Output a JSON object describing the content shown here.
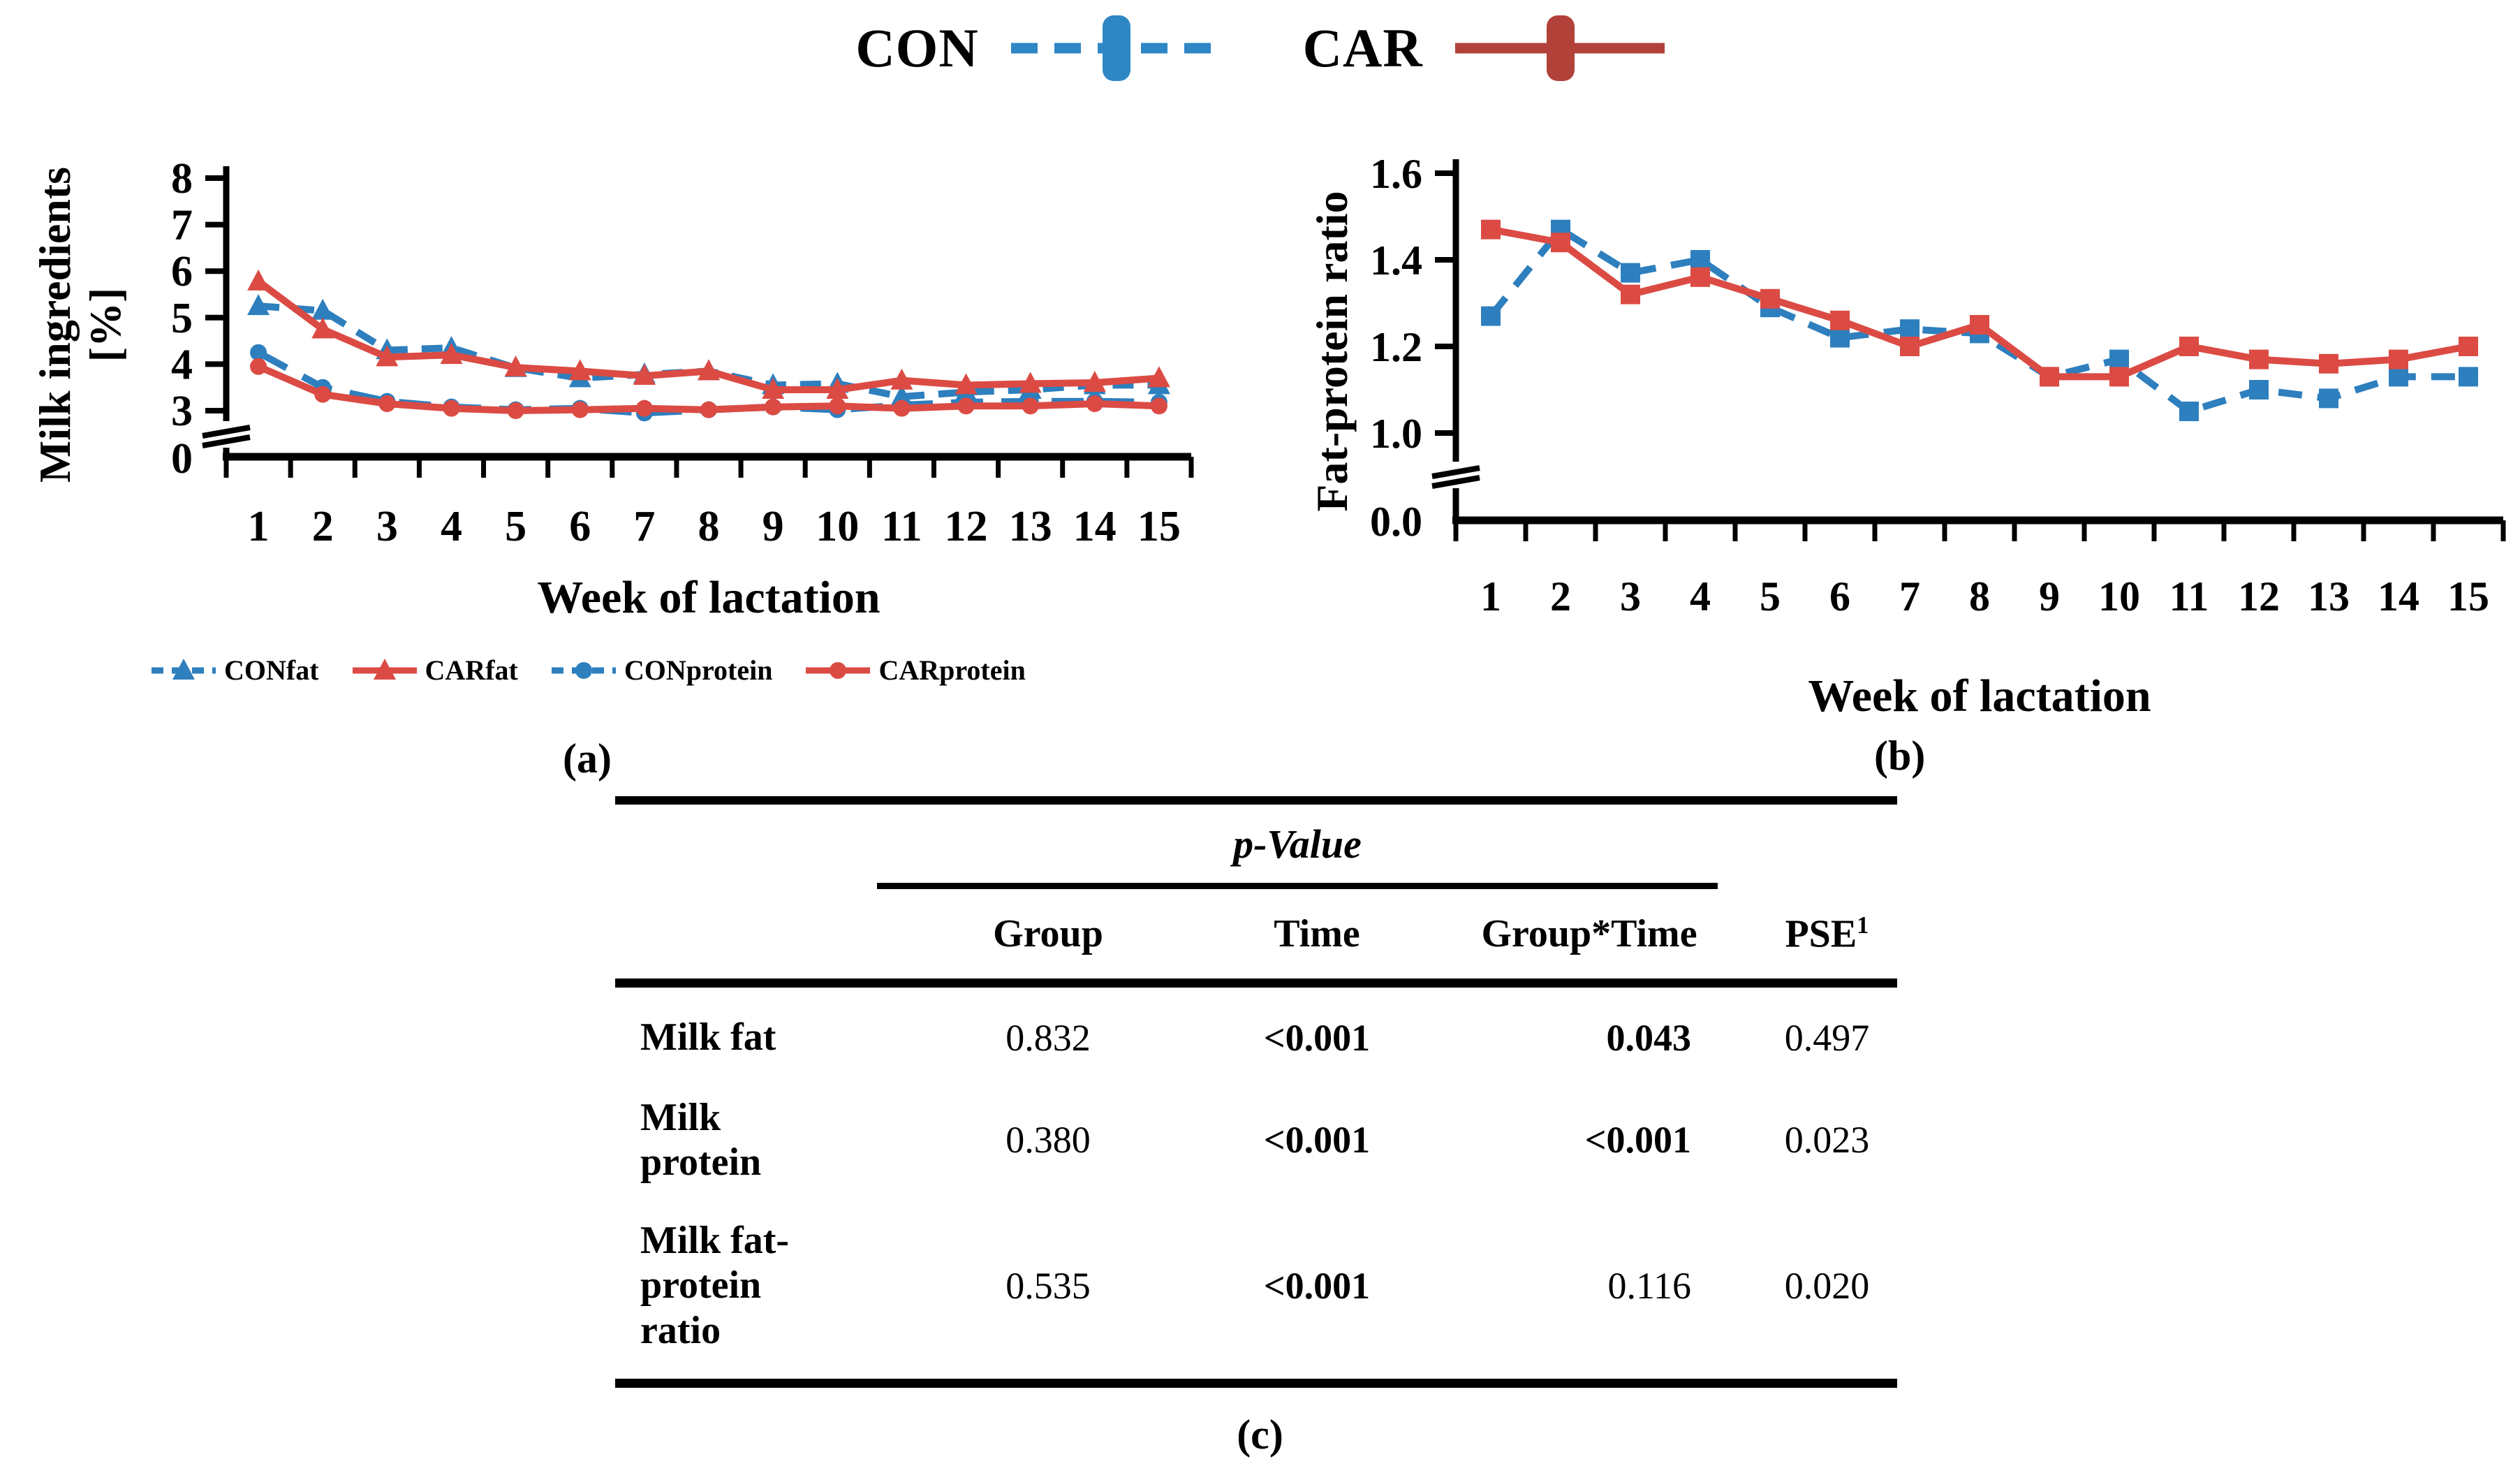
{
  "colors": {
    "blue": "#2E7FBE",
    "red": "#DB4B44",
    "legend_blue": "#2E86C5",
    "legend_red": "#B2413A",
    "axis": "#000000"
  },
  "top_legend": {
    "items": [
      {
        "label": "CON",
        "color": "#2E86C5",
        "dashed": true
      },
      {
        "label": "CAR",
        "color": "#B2413A",
        "dashed": false
      }
    ]
  },
  "panel_labels": {
    "a": "(a)",
    "b": "(b)",
    "c": "(c)"
  },
  "chart_data": [
    {
      "id": "a",
      "type": "line",
      "title": "",
      "ylabel_line1": "Milk ingredients",
      "ylabel_line2": "[%]",
      "xlabel": "Week of lactation",
      "x_labels": [
        "1",
        "2",
        "3",
        "4",
        "5",
        "6",
        "7",
        "8",
        "9",
        "10",
        "11",
        "12",
        "13",
        "14",
        "15"
      ],
      "y_range": [
        3,
        8
      ],
      "y_ticks": [
        {
          "v": 3,
          "label": "3"
        },
        {
          "v": 4,
          "label": "4"
        },
        {
          "v": 5,
          "label": "5"
        },
        {
          "v": 6,
          "label": "6"
        },
        {
          "v": 7,
          "label": "7"
        },
        {
          "v": 8,
          "label": "8"
        }
      ],
      "zero_label": "0",
      "axis_break": true,
      "legend_position": "bottom",
      "series": [
        {
          "name": "CONfat",
          "color": "blue",
          "dash": "30 20",
          "marker": "triangle",
          "values": [
            5.25,
            5.15,
            4.3,
            4.35,
            3.92,
            3.7,
            3.78,
            3.85,
            3.55,
            3.58,
            3.3,
            3.4,
            3.45,
            3.55,
            3.55
          ]
        },
        {
          "name": "CARfat",
          "color": "red",
          "dash": "",
          "marker": "triangle",
          "values": [
            5.78,
            4.75,
            4.15,
            4.2,
            3.93,
            3.85,
            3.75,
            3.85,
            3.45,
            3.45,
            3.65,
            3.55,
            3.58,
            3.6,
            3.7
          ]
        },
        {
          "name": "CONprotein",
          "color": "blue",
          "dash": "46 26",
          "marker": "circle",
          "values": [
            4.25,
            3.5,
            3.2,
            3.08,
            3.02,
            3.05,
            2.95,
            3.02,
            3.08,
            3.02,
            3.12,
            3.18,
            3.2,
            3.2,
            3.18
          ]
        },
        {
          "name": "CARprotein",
          "color": "red",
          "dash": "",
          "marker": "circle",
          "values": [
            3.95,
            3.35,
            3.15,
            3.05,
            3.0,
            3.02,
            3.05,
            3.02,
            3.08,
            3.1,
            3.05,
            3.1,
            3.1,
            3.15,
            3.1
          ]
        }
      ]
    },
    {
      "id": "b",
      "type": "line",
      "title": "",
      "ylabel_line1": "Fat-protein ratio",
      "ylabel_line2": "",
      "xlabel": "Week of lactation",
      "x_labels": [
        "1",
        "2",
        "3",
        "4",
        "5",
        "6",
        "7",
        "8",
        "9",
        "10",
        "11",
        "12",
        "13",
        "14",
        "15"
      ],
      "y_range": [
        1.0,
        1.6
      ],
      "y_ticks": [
        {
          "v": 1.0,
          "label": "1.0"
        },
        {
          "v": 1.2,
          "label": "1.2"
        },
        {
          "v": 1.4,
          "label": "1.4"
        },
        {
          "v": 1.6,
          "label": "1.6"
        }
      ],
      "zero_label": "0.0",
      "axis_break": true,
      "legend_position": "none",
      "series": [
        {
          "name": "CON",
          "color": "blue",
          "dash": "34 22",
          "marker": "square",
          "values": [
            1.27,
            1.47,
            1.37,
            1.4,
            1.29,
            1.22,
            1.24,
            1.23,
            1.13,
            1.17,
            1.05,
            1.1,
            1.08,
            1.13,
            1.13
          ]
        },
        {
          "name": "CAR",
          "color": "red",
          "dash": "",
          "marker": "square",
          "values": [
            1.47,
            1.44,
            1.32,
            1.36,
            1.31,
            1.26,
            1.2,
            1.25,
            1.13,
            1.13,
            1.2,
            1.17,
            1.16,
            1.17,
            1.2
          ]
        }
      ]
    }
  ],
  "table": {
    "p_value_header": "p-Value",
    "columns": {
      "group": "Group",
      "time": "Time",
      "group_time": "Group*Time",
      "pse": "PSE",
      "pse_sup": "1"
    },
    "rows": [
      {
        "label": "Milk fat",
        "group": "0.832",
        "time": "<0.001",
        "group_time": "0.043",
        "pse": "0.497"
      },
      {
        "label": "Milk protein",
        "group": "0.380",
        "time": "<0.001",
        "group_time": "<0.001",
        "pse": "0.023"
      },
      {
        "label": "Milk fat-protein ratio",
        "group": "0.535",
        "time": "<0.001",
        "group_time": "0.116",
        "pse": "0.020"
      }
    ]
  }
}
